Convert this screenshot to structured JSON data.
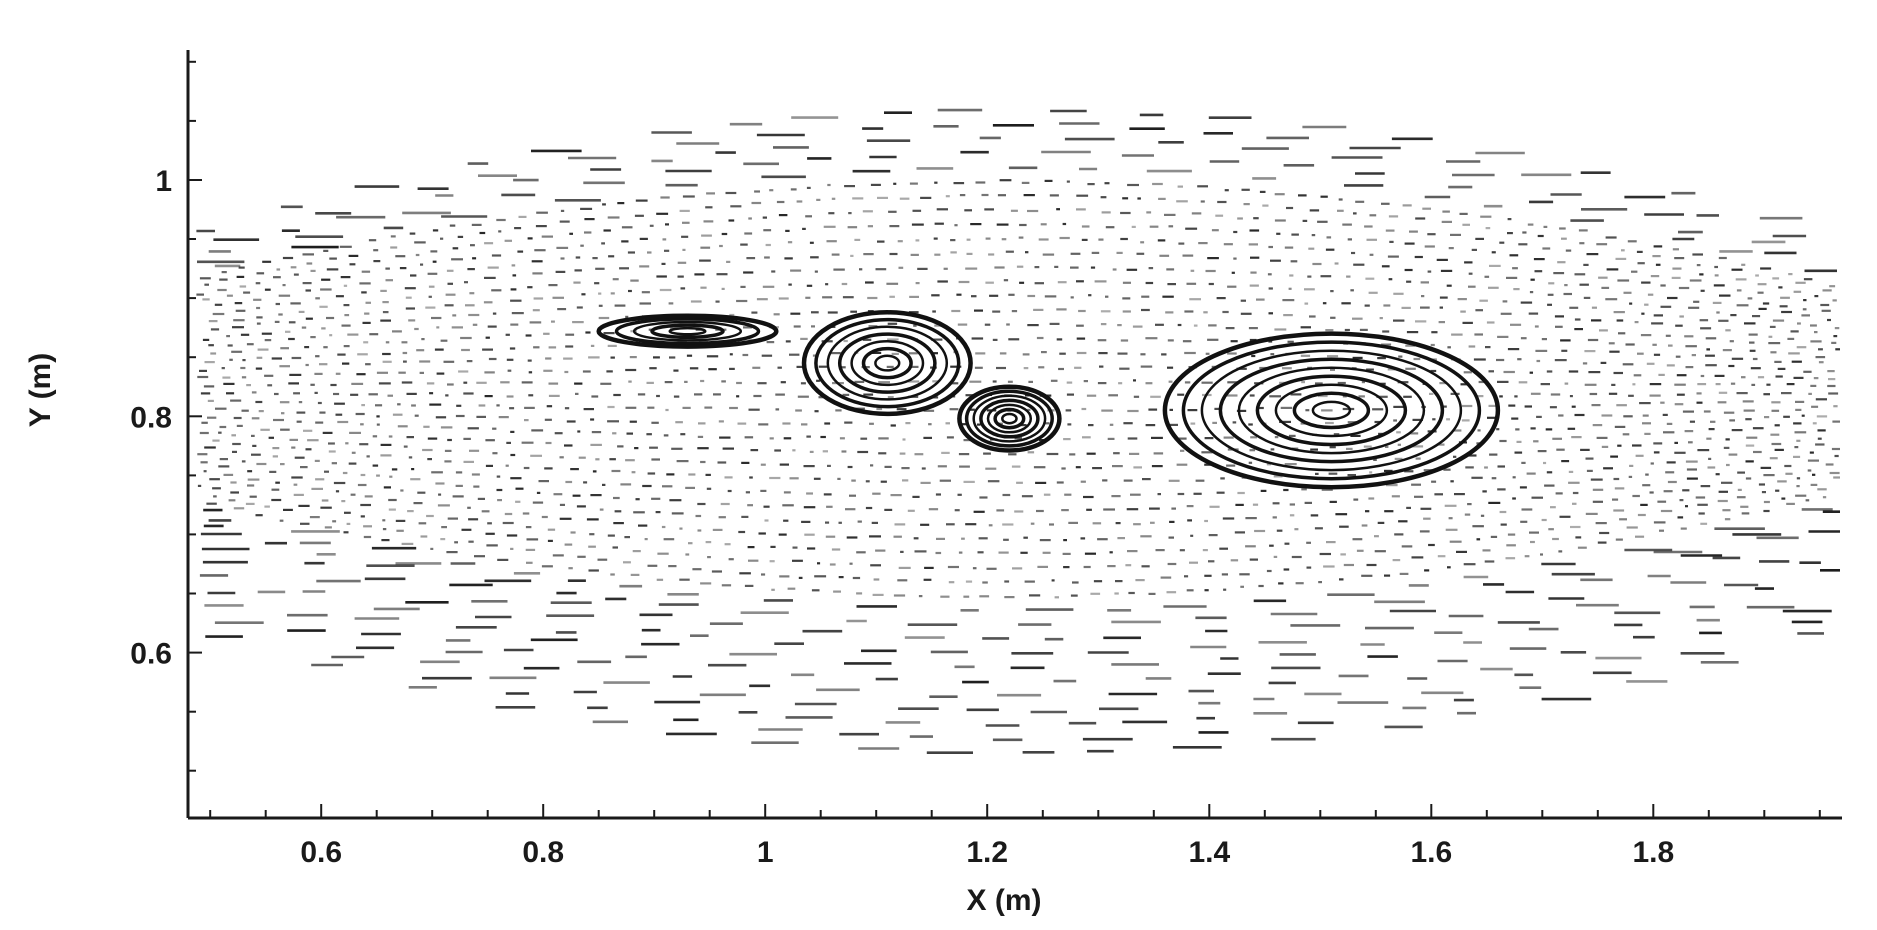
{
  "chart_data": {
    "type": "scatter",
    "subtype": "streamline-trace",
    "title": "",
    "xlabel": "X (m)",
    "ylabel": "Y (m)",
    "xlim": [
      0.48,
      1.97
    ],
    "ylim": [
      0.46,
      1.11
    ],
    "x_ticks": [
      0.6,
      0.8,
      1.0,
      1.2,
      1.4,
      1.6,
      1.8
    ],
    "x_tick_labels": [
      "0.6",
      "0.8",
      "1",
      "1.2",
      "1.4",
      "1.6",
      "1.8"
    ],
    "y_ticks": [
      0.6,
      0.8,
      1.0
    ],
    "y_tick_labels": [
      "0.6",
      "0.8",
      "1"
    ],
    "grid": false,
    "legend": "none",
    "colors": {
      "trace": "#111111",
      "axis": "#1a1a1a",
      "background": "#ffffff"
    },
    "vortices": [
      {
        "name": "",
        "x": 0.93,
        "y": 0.872,
        "rx": 0.08,
        "ry": 0.013
      },
      {
        "name": "",
        "x": 1.11,
        "y": 0.845,
        "rx": 0.075,
        "ry": 0.043
      },
      {
        "name": "",
        "x": 1.22,
        "y": 0.798,
        "rx": 0.045,
        "ry": 0.027
      },
      {
        "name": "",
        "x": 1.51,
        "y": 0.805,
        "rx": 0.15,
        "ry": 0.065
      }
    ]
  }
}
